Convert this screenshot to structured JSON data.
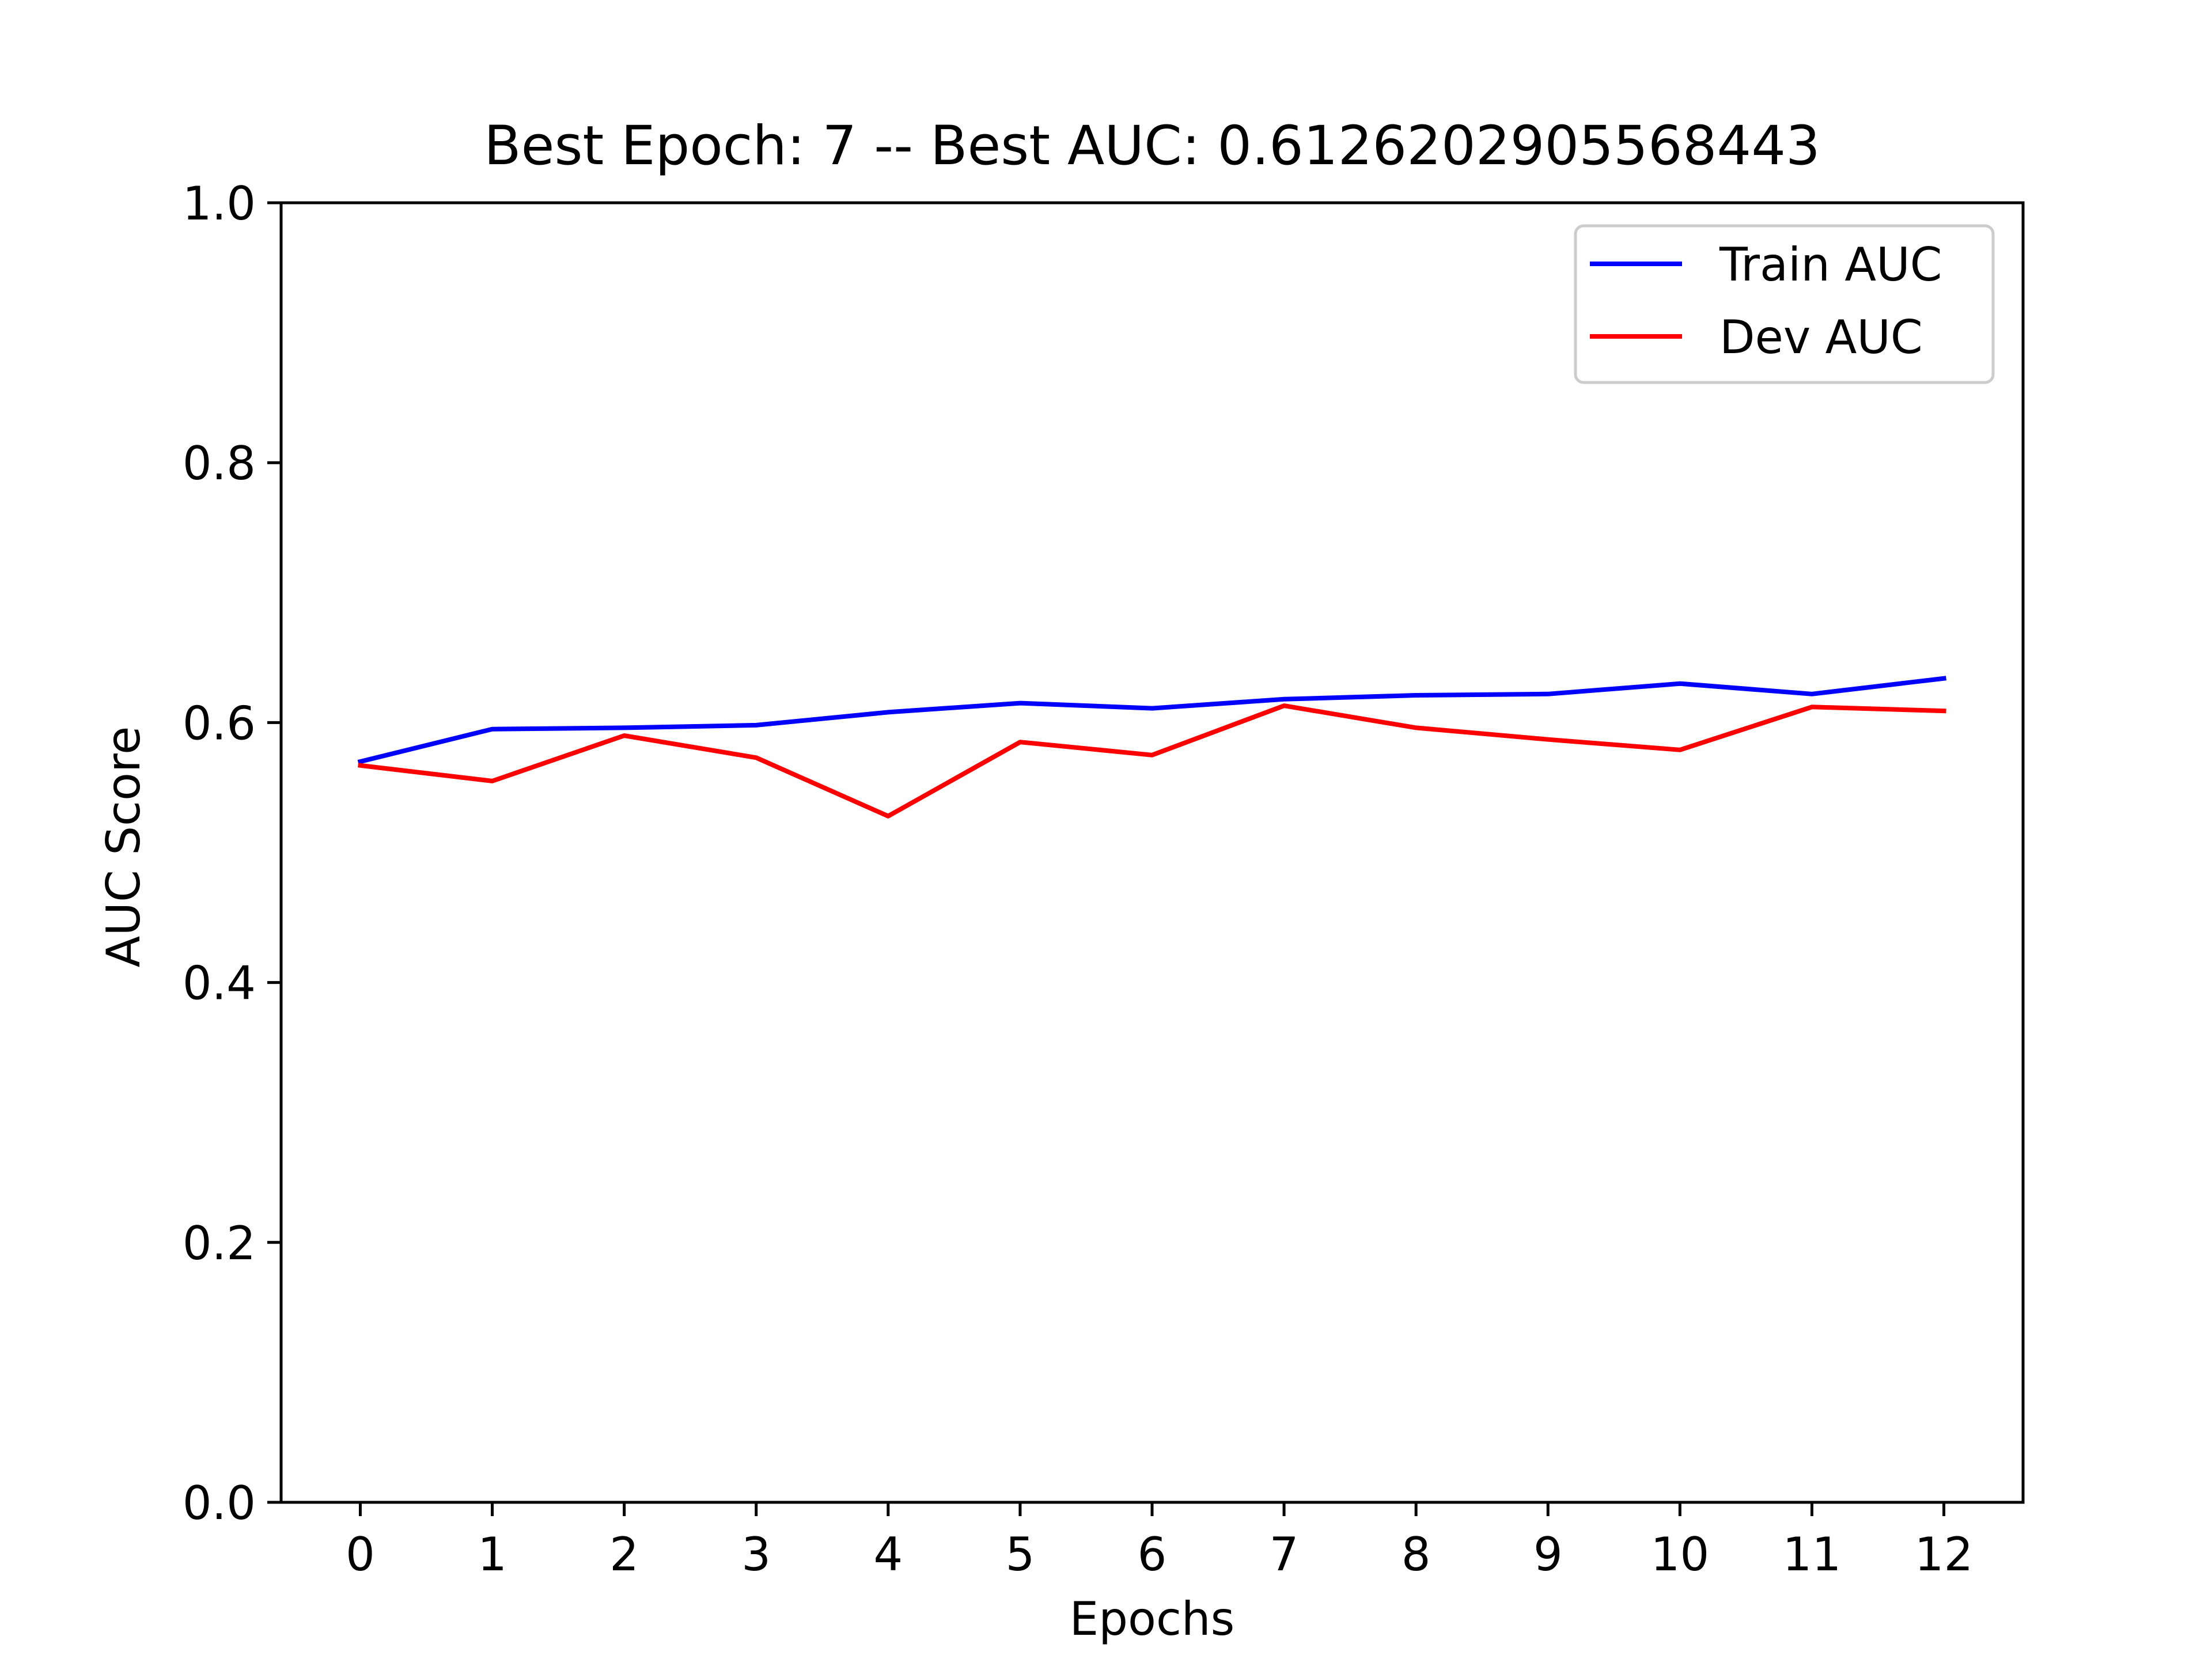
{
  "chart_data": {
    "type": "line",
    "title": "Best Epoch: 7 -- Best AUC: 0.6126202905568443",
    "xlabel": "Epochs",
    "ylabel": "AUC Score",
    "x": [
      0,
      1,
      2,
      3,
      4,
      5,
      6,
      7,
      8,
      9,
      10,
      11,
      12
    ],
    "xlim": [
      -0.6,
      12.6
    ],
    "ylim": [
      0.0,
      1.0
    ],
    "xticks": [
      "0",
      "1",
      "2",
      "3",
      "4",
      "5",
      "6",
      "7",
      "8",
      "9",
      "10",
      "11",
      "12"
    ],
    "yticks": [
      "0.0",
      "0.2",
      "0.4",
      "0.6",
      "0.8",
      "1.0"
    ],
    "grid": false,
    "legend_position": "top-right",
    "series": [
      {
        "name": "Train AUC",
        "color": "#0000ff",
        "values": [
          0.57,
          0.595,
          0.596,
          0.598,
          0.608,
          0.615,
          0.611,
          0.618,
          0.621,
          0.622,
          0.63,
          0.622,
          0.634
        ]
      },
      {
        "name": "Dev AUC",
        "color": "#ff0000",
        "values": [
          0.567,
          0.555,
          0.59,
          0.573,
          0.528,
          0.585,
          0.575,
          0.613,
          0.596,
          0.587,
          0.579,
          0.612,
          0.609
        ]
      }
    ]
  }
}
